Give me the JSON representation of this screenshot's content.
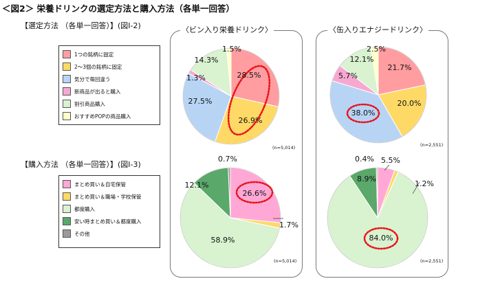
{
  "figure_title": "＜図2＞ 栄養ドリンクの選定方法と購入方法（各単一回答）",
  "sections": {
    "selection": {
      "title": "【選定方法 （各単一回答）】(図Ⅰ-2)"
    },
    "purchase": {
      "title": "【購入方法 （各単一回答）】(図Ⅰ-3)"
    }
  },
  "legends": {
    "selection": [
      {
        "label": "1つの銘柄に固定",
        "color": "#ff9da0"
      },
      {
        "label": "2～3個の銘柄に固定",
        "color": "#ffd966"
      },
      {
        "label": "気分で毎回違う",
        "color": "#b8d4f5"
      },
      {
        "label": "新商品が出ると購入",
        "color": "#f7a8d0"
      },
      {
        "label": "割引商品購入",
        "color": "#d9f2d0"
      },
      {
        "label": "おすすめPOPの商品購入",
        "color": "#ffffc8"
      }
    ],
    "purchase": [
      {
        "label": "まとめ買い＆自宅保管",
        "color": "#ffa8d6"
      },
      {
        "label": "まとめ買い＆職場・学校保管",
        "color": "#ffd966"
      },
      {
        "label": "都度購入",
        "color": "#d9f2d0"
      },
      {
        "label": "安い時まとめ買い＆都度購入",
        "color": "#5aa86a"
      },
      {
        "label": "その他",
        "color": "#9a9a9a"
      }
    ]
  },
  "panels": {
    "bin": {
      "title": "〈ビン入り栄養ドリンク〉"
    },
    "can": {
      "title": "〈缶入りエナジードリンク〉"
    }
  },
  "chart_data": [
    {
      "type": "pie",
      "id": "selection-bin",
      "title": "〈ビン入り栄養ドリンク〉",
      "categories": [
        "1つの銘柄に固定",
        "2～3個の銘柄に固定",
        "気分で毎回違う",
        "新商品が出ると購入",
        "割引商品購入",
        "おすすめPOPの商品購入"
      ],
      "values": [
        28.5,
        26.9,
        27.5,
        1.3,
        14.3,
        1.5
      ],
      "colors": [
        "#ff9da0",
        "#ffd966",
        "#b8d4f5",
        "#f7a8d0",
        "#d9f2d0",
        "#ffffc8"
      ],
      "labels": [
        "28.5%",
        "26.9%",
        "27.5%",
        "1.3%",
        "14.3%",
        "1.5%"
      ],
      "highlight": "28.5%+26.9%",
      "note": "(n=5,014)"
    },
    {
      "type": "pie",
      "id": "selection-can",
      "title": "〈缶入りエナジードリンク〉",
      "categories": [
        "1つの銘柄に固定",
        "2～3個の銘柄に固定",
        "気分で毎回違う",
        "新商品が出ると購入",
        "割引商品購入",
        "おすすめPOPの商品購入"
      ],
      "values": [
        21.7,
        20.0,
        38.0,
        5.7,
        12.1,
        2.5
      ],
      "colors": [
        "#ff9da0",
        "#ffd966",
        "#b8d4f5",
        "#f7a8d0",
        "#d9f2d0",
        "#ffffc8"
      ],
      "labels": [
        "21.7%",
        "20.0%",
        "38.0%",
        "5.7%",
        "12.1%",
        "2.5%"
      ],
      "highlight": "38.0%",
      "note": "(n=2,551)"
    },
    {
      "type": "pie",
      "id": "purchase-bin",
      "title": "〈ビン入り栄養ドリンク〉",
      "categories": [
        "まとめ買い＆自宅保管",
        "まとめ買い＆職場・学校保管",
        "都度購入",
        "安い時まとめ買い＆都度購入",
        "その他"
      ],
      "values": [
        26.6,
        1.7,
        58.9,
        12.1,
        0.7
      ],
      "colors": [
        "#ffa8d6",
        "#ffd966",
        "#d9f2d0",
        "#5aa86a",
        "#9a9a9a"
      ],
      "labels": [
        "26.6%",
        "1.7%",
        "58.9%",
        "12.1%",
        "0.7%"
      ],
      "highlight": "26.6%",
      "note": "(n=5,014)"
    },
    {
      "type": "pie",
      "id": "purchase-can",
      "title": "〈缶入りエナジードリンク〉",
      "categories": [
        "まとめ買い＆自宅保管",
        "まとめ買い＆職場・学校保管",
        "都度購入",
        "安い時まとめ買い＆都度購入",
        "その他"
      ],
      "values": [
        5.5,
        1.2,
        84.0,
        8.9,
        0.4
      ],
      "colors": [
        "#ffa8d6",
        "#ffd966",
        "#d9f2d0",
        "#5aa86a",
        "#9a9a9a"
      ],
      "labels": [
        "5.5%",
        "1.2%",
        "84.0%",
        "8.9%",
        "0.4%"
      ],
      "highlight": "84.0%",
      "note": "(n=2,551)"
    }
  ]
}
